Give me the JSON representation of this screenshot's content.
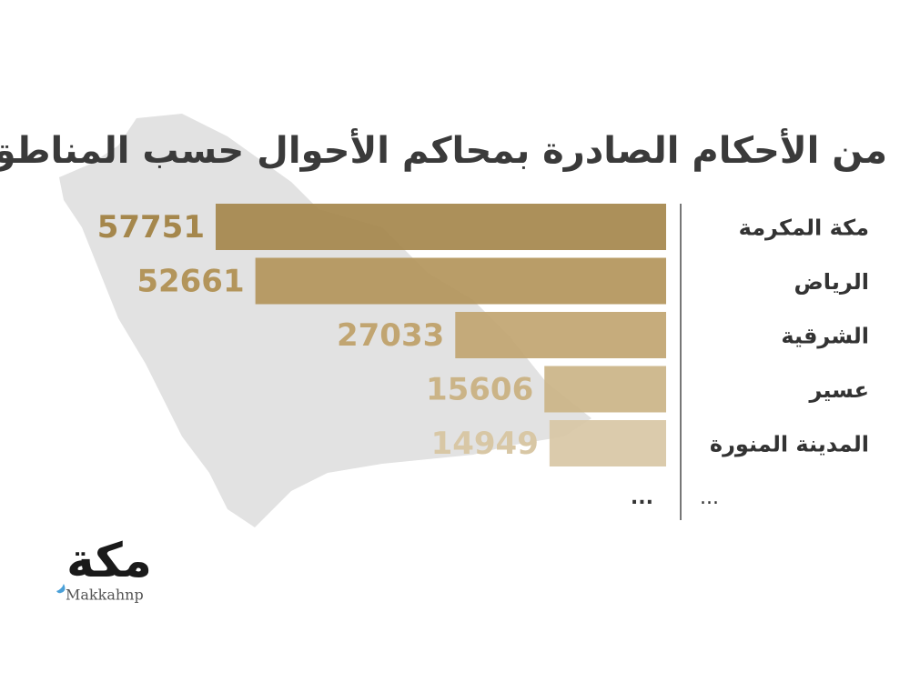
{
  "chart_data": {
    "type": "bar",
    "orientation": "horizontal",
    "title": "من الأحكام الصادرة بمحاكم الأحوال حسب المناطق",
    "categories": [
      "مكة المكرمة",
      "الرياض",
      "الشرقية",
      "عسير",
      "المدينة المنورة"
    ],
    "values": [
      57751,
      52661,
      27033,
      15606,
      14949
    ],
    "colors": [
      "#a5874c",
      "#b3955b",
      "#c1a571",
      "#cbb487",
      "#d8c7a5"
    ],
    "ellipsis_value": "...",
    "ellipsis_category": "..."
  },
  "logo": {
    "text": "مكة",
    "handle": "Makkahnp"
  }
}
